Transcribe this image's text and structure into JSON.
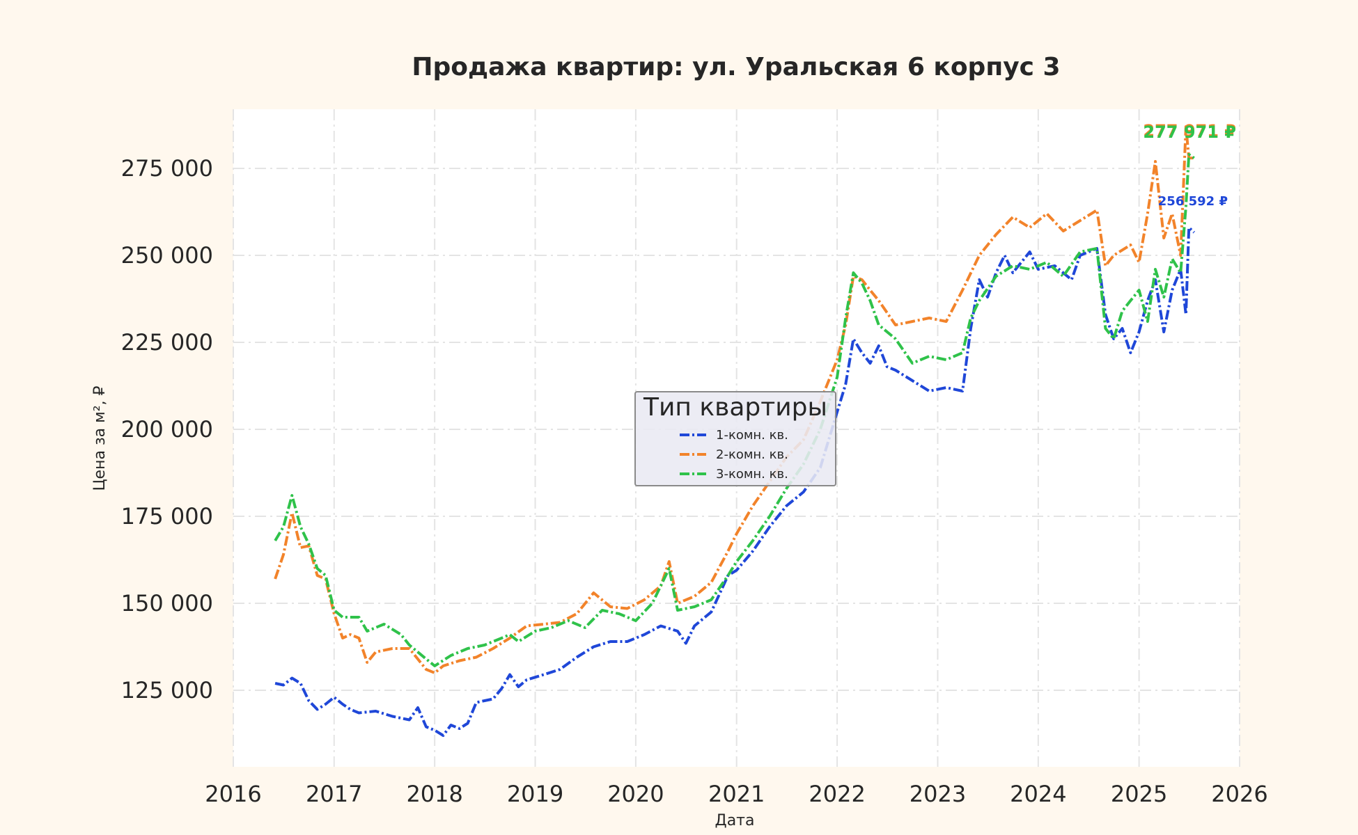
{
  "chart_data": {
    "type": "line",
    "title": "Продажа квартир: ул. Уральская 6 корпус 3",
    "xlabel": "Дата",
    "ylabel": "Цена за м², ₽",
    "xlim": [
      "2016-01-01",
      "2026-01-01"
    ],
    "ylim": [
      103000,
      292000
    ],
    "x_ticks": [
      "2016",
      "2017",
      "2018",
      "2019",
      "2020",
      "2021",
      "2022",
      "2023",
      "2024",
      "2025",
      "2026"
    ],
    "y_ticks": [
      125000,
      150000,
      175000,
      200000,
      225000,
      250000,
      275000
    ],
    "y_tick_labels": [
      "125 000",
      "150 000",
      "175 000",
      "200 000",
      "225 000",
      "250 000",
      "275 000"
    ],
    "grid": true,
    "legend": {
      "title": "Тип квартиры",
      "placement": "center"
    },
    "series": [
      {
        "name": "1-комн. кв.",
        "color": "#1f47d8",
        "dash": "dash-dot",
        "end_label": "256 592 ₽",
        "points": [
          [
            "2016-06-01",
            127000
          ],
          [
            "2016-07-01",
            126500
          ],
          [
            "2016-08-01",
            128500
          ],
          [
            "2016-09-01",
            127000
          ],
          [
            "2016-10-01",
            122000
          ],
          [
            "2016-11-01",
            119500
          ],
          [
            "2016-12-01",
            121000
          ],
          [
            "2017-01-01",
            123000
          ],
          [
            "2017-02-01",
            121000
          ],
          [
            "2017-03-01",
            119500
          ],
          [
            "2017-04-01",
            118500
          ],
          [
            "2017-06-01",
            119000
          ],
          [
            "2017-08-01",
            117500
          ],
          [
            "2017-10-01",
            116500
          ],
          [
            "2017-11-01",
            120000
          ],
          [
            "2017-12-01",
            114500
          ],
          [
            "2018-01-01",
            113500
          ],
          [
            "2018-02-01",
            112000
          ],
          [
            "2018-03-01",
            115000
          ],
          [
            "2018-04-01",
            114000
          ],
          [
            "2018-05-01",
            115500
          ],
          [
            "2018-06-01",
            121500
          ],
          [
            "2018-07-01",
            122000
          ],
          [
            "2018-08-01",
            122500
          ],
          [
            "2018-09-01",
            125500
          ],
          [
            "2018-10-01",
            129500
          ],
          [
            "2018-11-01",
            126000
          ],
          [
            "2018-12-01",
            128000
          ],
          [
            "2019-02-01",
            129500
          ],
          [
            "2019-04-01",
            131000
          ],
          [
            "2019-06-01",
            134500
          ],
          [
            "2019-08-01",
            137500
          ],
          [
            "2019-10-01",
            139000
          ],
          [
            "2019-12-01",
            139000
          ],
          [
            "2020-02-01",
            141000
          ],
          [
            "2020-04-01",
            143500
          ],
          [
            "2020-06-01",
            142000
          ],
          [
            "2020-07-01",
            138500
          ],
          [
            "2020-08-01",
            143500
          ],
          [
            "2020-10-01",
            147500
          ],
          [
            "2020-12-01",
            158000
          ],
          [
            "2021-01-01",
            159500
          ],
          [
            "2021-03-01",
            165000
          ],
          [
            "2021-05-01",
            172000
          ],
          [
            "2021-07-01",
            178000
          ],
          [
            "2021-09-01",
            182000
          ],
          [
            "2021-11-01",
            189000
          ],
          [
            "2022-01-01",
            205000
          ],
          [
            "2022-02-01",
            213000
          ],
          [
            "2022-03-01",
            226000
          ],
          [
            "2022-04-01",
            222000
          ],
          [
            "2022-05-01",
            219000
          ],
          [
            "2022-06-01",
            224000
          ],
          [
            "2022-07-01",
            218000
          ],
          [
            "2022-08-01",
            217000
          ],
          [
            "2022-10-01",
            214000
          ],
          [
            "2022-12-01",
            211000
          ],
          [
            "2023-02-01",
            212000
          ],
          [
            "2023-04-01",
            211000
          ],
          [
            "2023-05-01",
            229000
          ],
          [
            "2023-06-01",
            243000
          ],
          [
            "2023-07-01",
            238000
          ],
          [
            "2023-08-01",
            245000
          ],
          [
            "2023-09-01",
            250000
          ],
          [
            "2023-10-01",
            245000
          ],
          [
            "2023-12-01",
            251000
          ],
          [
            "2024-01-01",
            246000
          ],
          [
            "2024-03-01",
            247000
          ],
          [
            "2024-05-01",
            243000
          ],
          [
            "2024-06-01",
            250000
          ],
          [
            "2024-08-01",
            252000
          ],
          [
            "2024-09-01",
            233000
          ],
          [
            "2024-10-01",
            226000
          ],
          [
            "2024-11-01",
            229000
          ],
          [
            "2024-12-01",
            222000
          ],
          [
            "2025-01-01",
            228000
          ],
          [
            "2025-02-01",
            237000
          ],
          [
            "2025-03-01",
            243000
          ],
          [
            "2025-04-01",
            228000
          ],
          [
            "2025-05-01",
            240000
          ],
          [
            "2025-06-01",
            246000
          ],
          [
            "2025-06-20",
            233000
          ],
          [
            "2025-07-01",
            258000
          ],
          [
            "2025-07-20",
            256592
          ]
        ]
      },
      {
        "name": "2-комн. кв.",
        "color": "#f2832a",
        "dash": "dash-dot",
        "end_label": "277 971 ₽",
        "points": [
          [
            "2016-06-01",
            157000
          ],
          [
            "2016-07-01",
            164000
          ],
          [
            "2016-08-01",
            176000
          ],
          [
            "2016-09-01",
            166000
          ],
          [
            "2016-10-01",
            166500
          ],
          [
            "2016-11-01",
            158000
          ],
          [
            "2016-12-01",
            157000
          ],
          [
            "2017-01-01",
            147000
          ],
          [
            "2017-02-01",
            140000
          ],
          [
            "2017-03-01",
            141000
          ],
          [
            "2017-04-01",
            140000
          ],
          [
            "2017-05-01",
            133000
          ],
          [
            "2017-06-01",
            136000
          ],
          [
            "2017-08-01",
            137000
          ],
          [
            "2017-10-01",
            137000
          ],
          [
            "2017-12-01",
            131000
          ],
          [
            "2018-01-01",
            130000
          ],
          [
            "2018-02-01",
            132000
          ],
          [
            "2018-04-01",
            133500
          ],
          [
            "2018-06-01",
            134500
          ],
          [
            "2018-08-01",
            137000
          ],
          [
            "2018-10-01",
            140000
          ],
          [
            "2018-12-01",
            143500
          ],
          [
            "2019-02-01",
            144000
          ],
          [
            "2019-04-01",
            144500
          ],
          [
            "2019-06-01",
            147000
          ],
          [
            "2019-08-01",
            153000
          ],
          [
            "2019-10-01",
            149000
          ],
          [
            "2019-12-01",
            148500
          ],
          [
            "2020-02-01",
            151000
          ],
          [
            "2020-04-01",
            155000
          ],
          [
            "2020-05-01",
            162000
          ],
          [
            "2020-06-01",
            150000
          ],
          [
            "2020-08-01",
            152000
          ],
          [
            "2020-10-01",
            156000
          ],
          [
            "2020-12-01",
            165000
          ],
          [
            "2021-01-01",
            170000
          ],
          [
            "2021-03-01",
            178000
          ],
          [
            "2021-05-01",
            185000
          ],
          [
            "2021-07-01",
            192000
          ],
          [
            "2021-09-01",
            197000
          ],
          [
            "2021-11-01",
            208000
          ],
          [
            "2022-01-01",
            220000
          ],
          [
            "2022-02-01",
            230000
          ],
          [
            "2022-03-01",
            244000
          ],
          [
            "2022-04-01",
            243000
          ],
          [
            "2022-05-01",
            240000
          ],
          [
            "2022-06-01",
            237000
          ],
          [
            "2022-08-01",
            230000
          ],
          [
            "2022-10-01",
            231000
          ],
          [
            "2022-12-01",
            232000
          ],
          [
            "2023-02-01",
            231000
          ],
          [
            "2023-04-01",
            240000
          ],
          [
            "2023-06-01",
            250000
          ],
          [
            "2023-08-01",
            256000
          ],
          [
            "2023-10-01",
            261000
          ],
          [
            "2023-12-01",
            258000
          ],
          [
            "2024-02-01",
            262000
          ],
          [
            "2024-04-01",
            257000
          ],
          [
            "2024-06-01",
            260000
          ],
          [
            "2024-08-01",
            263000
          ],
          [
            "2024-09-01",
            247000
          ],
          [
            "2024-10-01",
            250000
          ],
          [
            "2024-12-01",
            253000
          ],
          [
            "2025-01-01",
            248000
          ],
          [
            "2025-02-01",
            262000
          ],
          [
            "2025-03-01",
            277000
          ],
          [
            "2025-04-01",
            255000
          ],
          [
            "2025-05-01",
            262000
          ],
          [
            "2025-06-01",
            250000
          ],
          [
            "2025-06-20",
            287000
          ],
          [
            "2025-07-01",
            278000
          ],
          [
            "2025-07-20",
            277971
          ]
        ]
      },
      {
        "name": "3-комн. кв.",
        "color": "#2fc24a",
        "dash": "dash-dot",
        "end_label": "277 971 ₽",
        "points": [
          [
            "2016-06-01",
            168000
          ],
          [
            "2016-07-01",
            172000
          ],
          [
            "2016-08-01",
            181000
          ],
          [
            "2016-09-01",
            172000
          ],
          [
            "2016-10-01",
            167000
          ],
          [
            "2016-11-01",
            160000
          ],
          [
            "2016-12-01",
            158000
          ],
          [
            "2017-01-01",
            148000
          ],
          [
            "2017-02-01",
            146000
          ],
          [
            "2017-04-01",
            146000
          ],
          [
            "2017-05-01",
            142000
          ],
          [
            "2017-07-01",
            144000
          ],
          [
            "2017-09-01",
            141000
          ],
          [
            "2017-10-01",
            138000
          ],
          [
            "2017-12-01",
            134000
          ],
          [
            "2018-01-01",
            132000
          ],
          [
            "2018-03-01",
            135000
          ],
          [
            "2018-05-01",
            137000
          ],
          [
            "2018-07-01",
            138000
          ],
          [
            "2018-09-01",
            140000
          ],
          [
            "2018-10-01",
            141000
          ],
          [
            "2018-11-01",
            139000
          ],
          [
            "2019-01-01",
            142000
          ],
          [
            "2019-03-01",
            143000
          ],
          [
            "2019-05-01",
            145000
          ],
          [
            "2019-07-01",
            143000
          ],
          [
            "2019-09-01",
            148000
          ],
          [
            "2019-11-01",
            147000
          ],
          [
            "2020-01-01",
            145000
          ],
          [
            "2020-03-01",
            150000
          ],
          [
            "2020-05-01",
            160000
          ],
          [
            "2020-06-01",
            148000
          ],
          [
            "2020-08-01",
            149000
          ],
          [
            "2020-10-01",
            151000
          ],
          [
            "2020-12-01",
            158000
          ],
          [
            "2021-01-01",
            162000
          ],
          [
            "2021-03-01",
            168000
          ],
          [
            "2021-05-01",
            175000
          ],
          [
            "2021-07-01",
            183000
          ],
          [
            "2021-09-01",
            190000
          ],
          [
            "2021-11-01",
            200000
          ],
          [
            "2022-01-01",
            215000
          ],
          [
            "2022-02-01",
            232000
          ],
          [
            "2022-03-01",
            245000
          ],
          [
            "2022-04-01",
            242000
          ],
          [
            "2022-05-01",
            237000
          ],
          [
            "2022-06-01",
            230000
          ],
          [
            "2022-08-01",
            226000
          ],
          [
            "2022-10-01",
            219000
          ],
          [
            "2022-12-01",
            221000
          ],
          [
            "2023-02-01",
            220000
          ],
          [
            "2023-04-01",
            222000
          ],
          [
            "2023-05-01",
            232000
          ],
          [
            "2023-06-01",
            237000
          ],
          [
            "2023-08-01",
            244000
          ],
          [
            "2023-10-01",
            247000
          ],
          [
            "2023-12-01",
            246000
          ],
          [
            "2024-02-01",
            248000
          ],
          [
            "2024-04-01",
            244000
          ],
          [
            "2024-06-01",
            251000
          ],
          [
            "2024-08-01",
            252000
          ],
          [
            "2024-09-01",
            229000
          ],
          [
            "2024-10-01",
            226000
          ],
          [
            "2024-11-01",
            234000
          ],
          [
            "2024-12-01",
            237000
          ],
          [
            "2025-01-01",
            240000
          ],
          [
            "2025-02-01",
            231000
          ],
          [
            "2025-03-01",
            246000
          ],
          [
            "2025-04-01",
            238000
          ],
          [
            "2025-05-01",
            249000
          ],
          [
            "2025-06-01",
            245000
          ],
          [
            "2025-06-20",
            264000
          ],
          [
            "2025-07-01",
            279000
          ],
          [
            "2025-07-20",
            277971
          ]
        ]
      }
    ]
  }
}
